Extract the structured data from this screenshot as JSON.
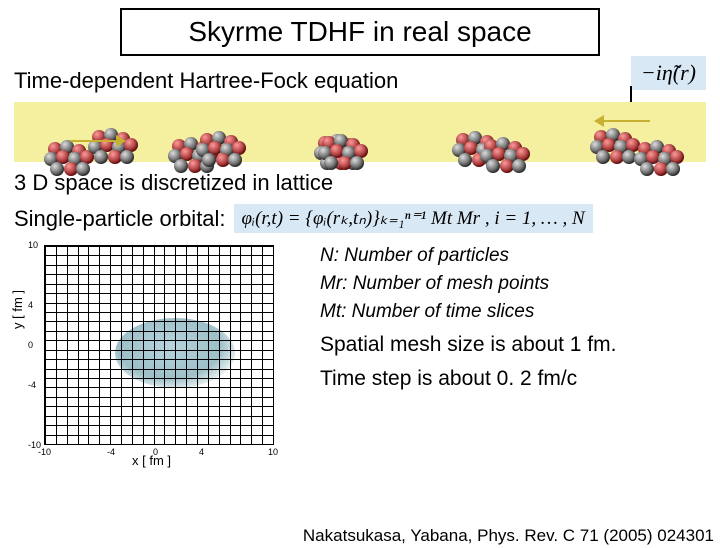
{
  "title": "Skyrme TDHF in real space",
  "heading1": "Time-dependent Hartree-Fock equation",
  "heading2": "3 D space is discretized in lattice",
  "orbital_label": "Single-particle orbital:",
  "formula_badge": "−iη̃(r)",
  "orbital_formula": "φᵢ(r,t) = {φᵢ(rₖ,tₙ)}ₖ₌₁ⁿ⁼¹  Mt Mr ,   i = 1, … , N",
  "grid": {
    "xlabel": "x [ fm ]",
    "ylabel": "y [ fm ]",
    "xtick_labels": [
      "-10",
      "-4",
      "0",
      "4",
      "10"
    ],
    "ytick_labels": [
      "-10",
      "-4",
      "0",
      "4",
      "10"
    ],
    "n_lines": 21,
    "line_color": "#000000",
    "blob_color": "#a8c8d0"
  },
  "collision": {
    "bg_color": "#f5f0a0",
    "positions_pct": [
      4,
      22,
      43,
      63,
      83
    ],
    "arrow_color": "#c8b030"
  },
  "info": {
    "n_line": "N: Number of particles",
    "mr_line": "Mr: Number of mesh points",
    "mt_line": "Mt: Number of time slices",
    "mesh_line": "Spatial mesh size is about 1 fm.",
    "dt_line": "Time step is about 0. 2 fm/c"
  },
  "citation": "Nakatsukasa, Yabana, Phys. Rev. C 71 (2005) 024301"
}
